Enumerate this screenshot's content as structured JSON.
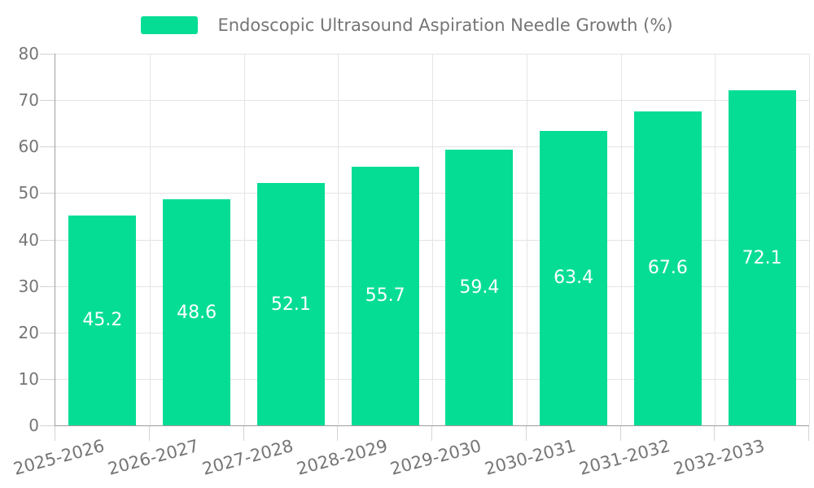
{
  "legend": {
    "label": "Endoscopic Ultrasound Aspiration Needle Growth (%)"
  },
  "colors": {
    "bar": "#05dd95",
    "bar_label": "#ffffff",
    "grid": "#e4e4e4",
    "axis": "#9e9e9e",
    "tick": "#d4d4d4",
    "text": "#757575",
    "background": "#ffffff"
  },
  "chart_data": {
    "type": "bar",
    "title": "Endoscopic Ultrasound Aspiration Needle Growth (%)",
    "categories": [
      "2025-2026",
      "2026-2027",
      "2027-2028",
      "2028-2029",
      "2029-2030",
      "2030-2031",
      "2031-2032",
      "2032-2033"
    ],
    "series": [
      {
        "name": "Endoscopic Ultrasound Aspiration Needle Growth (%)",
        "values": [
          45.2,
          48.6,
          52.1,
          55.7,
          59.4,
          63.4,
          67.6,
          72.1
        ]
      }
    ],
    "value_labels": [
      "45.2",
      "48.6",
      "52.1",
      "55.7",
      "59.4",
      "63.4",
      "67.6",
      "72.1"
    ],
    "value_label_position": "inside-center",
    "xlabel": "",
    "ylabel": "",
    "ylim": [
      0,
      80
    ],
    "ytick_step": 10,
    "yticks": [
      0,
      10,
      20,
      30,
      40,
      50,
      60,
      70,
      80
    ],
    "grid": true,
    "grid_vertical_at": "category-boundaries",
    "legend_position": "top-center",
    "xtick_label_rotation_deg": -15
  }
}
